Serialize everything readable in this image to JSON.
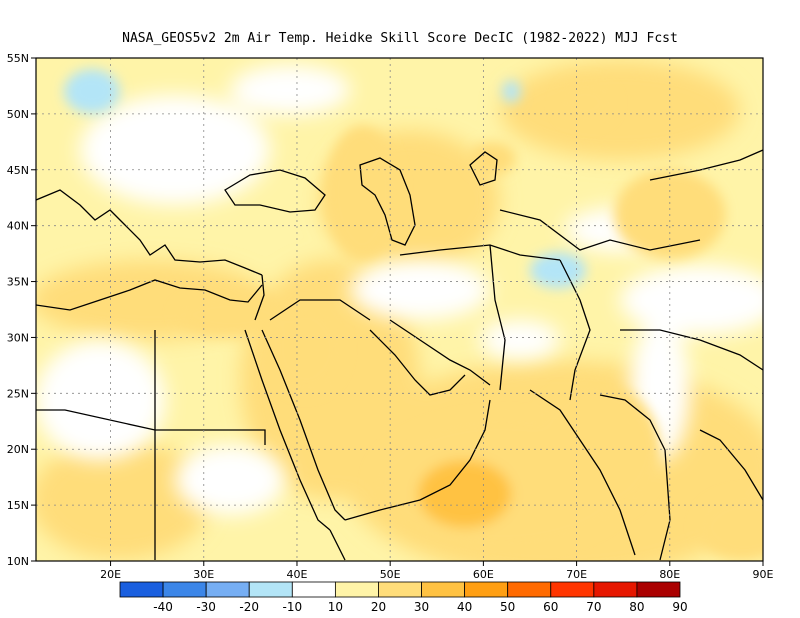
{
  "chart_data": {
    "type": "heatmap",
    "title": "NASA_GEOS5v2  2m Air Temp. Heidke Skill Score DecIC (1982-2022) MJJ Fcst",
    "x_ticks": [
      "20E",
      "30E",
      "40E",
      "50E",
      "60E",
      "70E",
      "80E",
      "90E"
    ],
    "y_ticks": [
      "10N",
      "15N",
      "20N",
      "25N",
      "30N",
      "35N",
      "40N",
      "45N",
      "50N",
      "55N"
    ],
    "x_range": [
      12,
      90
    ],
    "y_range": [
      10,
      55
    ],
    "grid": true,
    "colorbar": {
      "labels": [
        "-40",
        "-30",
        "-20",
        "-10",
        "10",
        "20",
        "30",
        "40",
        "50",
        "60",
        "70",
        "80",
        "90"
      ],
      "colors": [
        "#1a5fdf",
        "#3c86e8",
        "#76aef3",
        "#b3e5f7",
        "#ffffff",
        "#fff4a8",
        "#ffdd7a",
        "#ffc243",
        "#ff9f13",
        "#ff6a00",
        "#ff3500",
        "#e61700",
        "#aa0000"
      ]
    },
    "regions": [
      {
        "lon": 62,
        "lat": 17,
        "rx": 14,
        "ry": 6,
        "level": 6
      },
      {
        "lon": 72,
        "lat": 20,
        "rx": 7,
        "ry": 6,
        "level": 6
      },
      {
        "lon": 58,
        "lat": 16,
        "rx": 5,
        "ry": 3,
        "level": 7
      },
      {
        "lon": 47,
        "lat": 43,
        "rx": 4,
        "ry": 6,
        "level": 6
      },
      {
        "lon": 61,
        "lat": 46,
        "rx": 2.5,
        "ry": 1.5,
        "level": 6
      },
      {
        "lon": 41,
        "lat": 29,
        "rx": 4,
        "ry": 4,
        "level": 6
      },
      {
        "lon": 33,
        "lat": 32,
        "rx": 6,
        "ry": 2,
        "level": 6
      },
      {
        "lon": 71,
        "lat": 51,
        "rx": 3,
        "ry": 2,
        "level": 6
      },
      {
        "lon": 88,
        "lat": 13,
        "rx": 5,
        "ry": 3,
        "level": 6
      },
      {
        "lon": 80,
        "lat": 41,
        "rx": 6,
        "ry": 4,
        "level": 6
      },
      {
        "lon": 18,
        "lat": 52,
        "rx": 3,
        "ry": 2,
        "level": 3
      },
      {
        "lon": 63,
        "lat": 52,
        "rx": 1,
        "ry": 1,
        "level": 3
      },
      {
        "lon": 68,
        "lat": 36,
        "rx": 3,
        "ry": 1.6,
        "level": 3
      }
    ]
  }
}
